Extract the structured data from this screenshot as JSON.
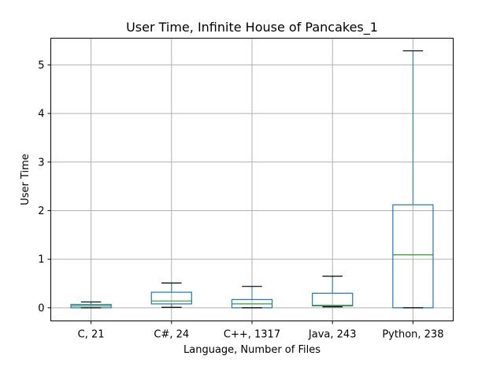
{
  "chart_data": {
    "type": "boxplot",
    "title": "User Time, Infinite House of Pancakes_1",
    "xlabel": "Language, Number of Files",
    "ylabel": "User Time",
    "ylim": [
      -0.27,
      5.55
    ],
    "yticks": [
      0,
      1,
      2,
      3,
      4,
      5
    ],
    "grid": true,
    "categories": [
      "C, 21",
      "C#, 24",
      "C++, 1317",
      "Java, 243",
      "Python, 238"
    ],
    "boxes": [
      {
        "whisker_low": 0.0,
        "q1": 0.0,
        "median": 0.04,
        "q3": 0.07,
        "whisker_high": 0.12
      },
      {
        "whisker_low": 0.01,
        "q1": 0.08,
        "median": 0.14,
        "q3": 0.32,
        "whisker_high": 0.51
      },
      {
        "whisker_low": 0.0,
        "q1": 0.0,
        "median": 0.08,
        "q3": 0.17,
        "whisker_high": 0.44
      },
      {
        "whisker_low": 0.02,
        "q1": 0.04,
        "median": 0.05,
        "q3": 0.3,
        "whisker_high": 0.65
      },
      {
        "whisker_low": 0.0,
        "q1": 0.0,
        "median": 1.09,
        "q3": 2.12,
        "whisker_high": 5.29
      }
    ],
    "colors": {
      "box": "#1f77b4",
      "median": "#2ca02c",
      "whisker_cap": "#000000",
      "grid": "#b0b0b0"
    }
  }
}
